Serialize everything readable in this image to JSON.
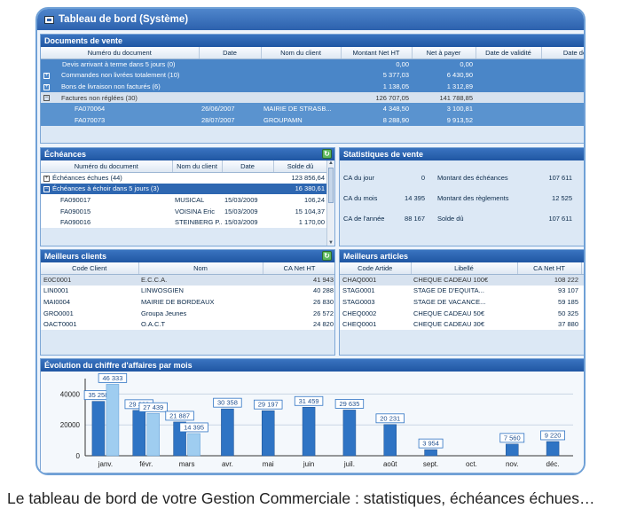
{
  "window": {
    "title": "Tableau de bord (Système)"
  },
  "documents_vente": {
    "title": "Documents de vente",
    "columns": [
      "Numéro du document",
      "Date",
      "Nom du client",
      "Montant Net HT",
      "Net à payer",
      "Date de validité",
      "Date de"
    ],
    "rows": [
      {
        "label": "Devis arrivant à terme dans 5 jours (0)",
        "ht": "0,00",
        "net": "0,00"
      },
      {
        "label": "Commandes non livrées totalement (10)",
        "ht": "5 377,03",
        "net": "6 430,90"
      },
      {
        "label": "Bons de livraison non facturés (6)",
        "ht": "1 138,05",
        "net": "1 312,89"
      },
      {
        "label": "Factures non réglées (30)",
        "ht": "126 707,05",
        "net": "141 788,85"
      }
    ],
    "subrows": [
      {
        "num": "FA070064",
        "date": "26/06/2007",
        "client": "MAIRIE DE STRASB...",
        "ht": "4 348,50",
        "net": "3 100,81"
      },
      {
        "num": "FA070073",
        "date": "28/07/2007",
        "client": "GROUPAMN",
        "ht": "8 288,90",
        "net": "9 913,52"
      }
    ]
  },
  "echeances": {
    "title": "Échéances",
    "columns": [
      "Numéro du document",
      "Nom du client",
      "Date",
      "Solde dû"
    ],
    "groups": [
      {
        "label": "Échéances échues (44)",
        "solde": "123 856,64"
      },
      {
        "label": "Échéances à échoir dans 5 jours (3)",
        "solde": "16 380,61"
      }
    ],
    "rows": [
      {
        "num": "FA090017",
        "client": "MUSICAL",
        "date": "15/03/2009",
        "solde": "106,24"
      },
      {
        "num": "FA090015",
        "client": "VOISINA Eric",
        "date": "15/03/2009",
        "solde": "15 104,37"
      },
      {
        "num": "FA090016",
        "client": "STEINBERG P...",
        "date": "15/03/2009",
        "solde": "1 170,00"
      }
    ]
  },
  "stats_vente": {
    "title": "Statistiques de vente",
    "rows": [
      {
        "l1": "CA du jour",
        "v1": "0",
        "l2": "Montant des échéances",
        "v2": "107 611"
      },
      {
        "l1": "CA du mois",
        "v1": "14 395",
        "l2": "Montant des règlements",
        "v2": "12 525"
      },
      {
        "l1": "CA de l'année",
        "v1": "88 167",
        "l2": "Solde dû",
        "v2": "107 611"
      }
    ]
  },
  "meilleurs_clients": {
    "title": "Meilleurs clients",
    "columns": [
      "Code Client",
      "Nom",
      "CA Net HT"
    ],
    "rows": [
      {
        "code": "E0C0001",
        "nom": "E.C.C.A.",
        "ca": "41 943"
      },
      {
        "code": "LIN0001",
        "nom": "LINWOSGIEN",
        "ca": "40 288"
      },
      {
        "code": "MAI0004",
        "nom": "MAIRIE DE BORDEAUX",
        "ca": "26 830"
      },
      {
        "code": "GRO0001",
        "nom": "Groupa Jeunes",
        "ca": "26 572"
      },
      {
        "code": "OACT0001",
        "nom": "O.A.C.T",
        "ca": "24 820"
      }
    ]
  },
  "meilleurs_articles": {
    "title": "Meilleurs articles",
    "columns": [
      "Code Artide",
      "Libellé",
      "CA Net HT"
    ],
    "rows": [
      {
        "code": "CHAQ0001",
        "lib": "CHEQUE CADEAU 100€",
        "ca": "108 222"
      },
      {
        "code": "STAG0001",
        "lib": "STAGE DE D'EQUITA...",
        "ca": "93 107"
      },
      {
        "code": "STAG0003",
        "lib": "STAGE DE VACANCE...",
        "ca": "59 185"
      },
      {
        "code": "CHEQ0002",
        "lib": "CHEQUE CADEAU 50€",
        "ca": "50 325"
      },
      {
        "code": "CHEQ0001",
        "lib": "CHEQUE CADEAU 30€",
        "ca": "37 880"
      }
    ]
  },
  "chart_data": {
    "type": "bar",
    "title": "Évolution du chiffre d'affaires par mois",
    "categories": [
      "janv.",
      "févr.",
      "mars",
      "avr.",
      "mai",
      "juin",
      "juil.",
      "août",
      "sept.",
      "oct.",
      "nov.",
      "déc."
    ],
    "series": [
      {
        "values": [
          35258,
          29398,
          21887,
          30358,
          29197,
          31459,
          29635,
          20231,
          3954,
          0,
          7560,
          9220
        ],
        "labels": [
          "35 258",
          "29 398",
          "21 887",
          "30 358",
          "29 197",
          "31 459",
          "29 635",
          "20 231",
          "3 954",
          "",
          "7 560",
          "9 220"
        ]
      },
      {
        "values": [
          46333,
          27439,
          14395,
          null,
          null,
          null,
          null,
          null,
          null,
          null,
          null,
          null
        ],
        "labels": [
          "46 333",
          "27 439",
          "14 395",
          "",
          "",
          "",
          "",
          "",
          "",
          "",
          "",
          ""
        ]
      }
    ],
    "yticks": [
      "0",
      "20000",
      "40000"
    ],
    "ylim": [
      0,
      50000
    ],
    "colors": {
      "dark": "#2f74c4",
      "light": "#9fcdf0"
    },
    "grid": true
  },
  "caption": "Le tableau de bord de votre Gestion Commerciale :  statistiques, échéances échues…"
}
